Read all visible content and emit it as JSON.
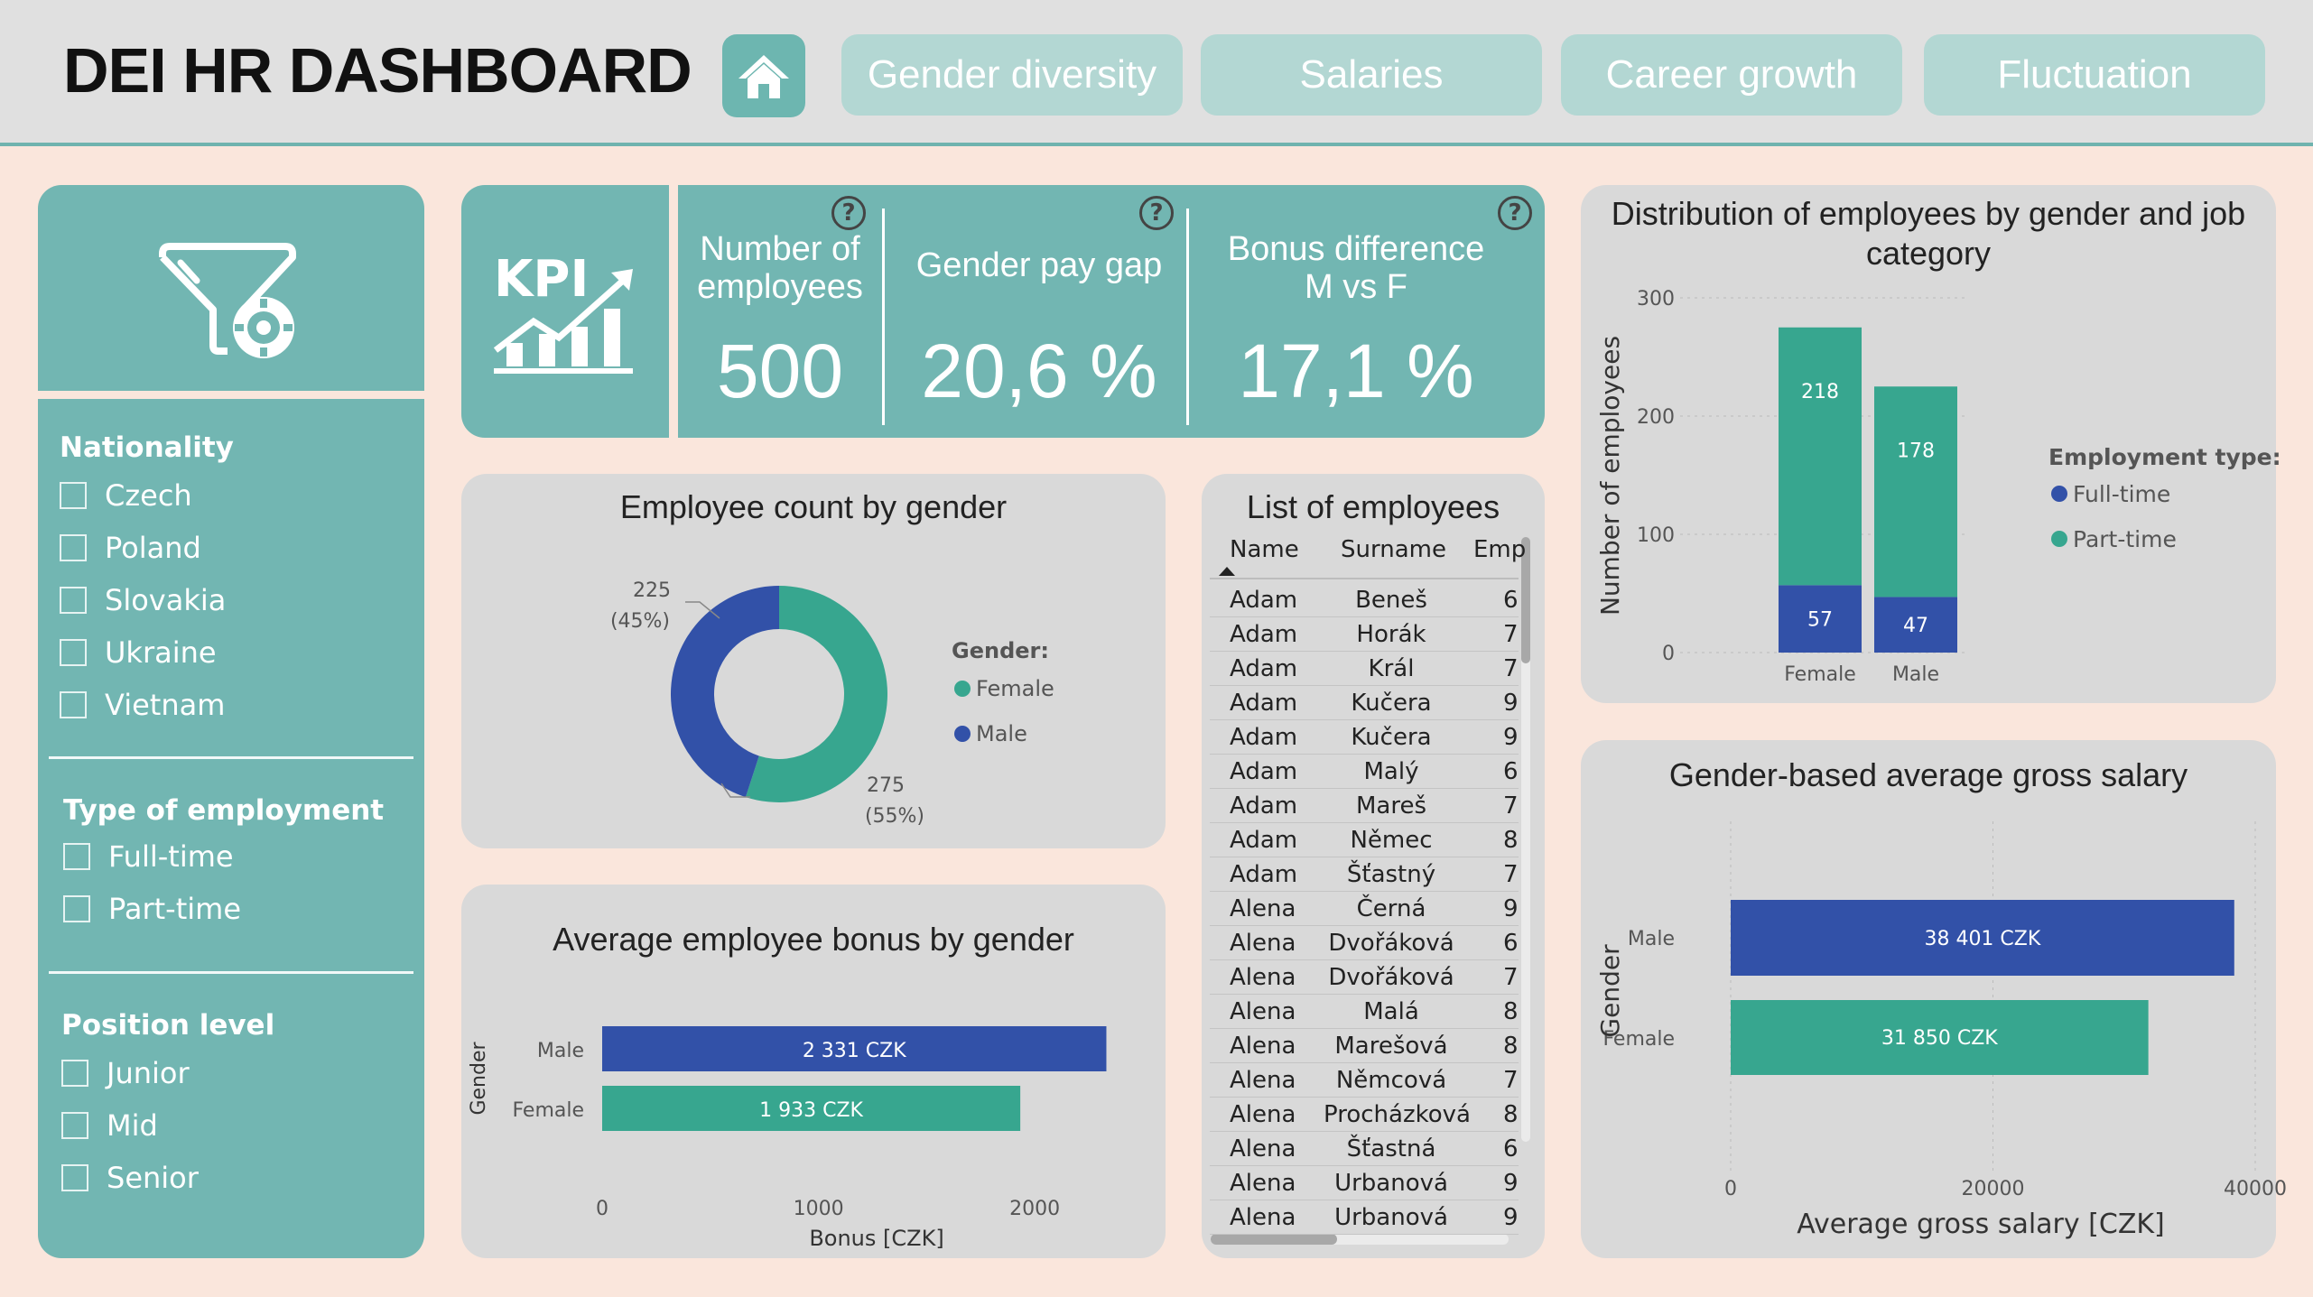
{
  "header": {
    "title": "DEI HR DASHBOARD",
    "nav": [
      "Gender diversity",
      "Salaries",
      "Career growth",
      "Fluctuation"
    ]
  },
  "filters": {
    "nationality": {
      "title": "Nationality",
      "items": [
        "Czech",
        "Poland",
        "Slovakia",
        "Ukraine",
        "Vietnam"
      ]
    },
    "employment": {
      "title": "Type of employment",
      "items": [
        "Full-time",
        "Part-time"
      ]
    },
    "position": {
      "title": "Position level",
      "items": [
        "Junior",
        "Mid",
        "Senior"
      ]
    }
  },
  "kpi": {
    "icon_text": "KPI",
    "cards": [
      {
        "label_line1": "Number of",
        "label_line2": "employees",
        "value": "500"
      },
      {
        "label_line1": "Gender pay gap",
        "label_line2": "",
        "value": "20,6 %"
      },
      {
        "label_line1": "Bonus difference",
        "label_line2": "M vs F",
        "value": "17,1 %"
      }
    ],
    "help_glyph": "?"
  },
  "employee_count": {
    "title": "Employee count by gender",
    "legend_title": "Gender:",
    "legend": [
      "Female",
      "Male"
    ],
    "male_label": "225",
    "male_pct": "(45%)",
    "female_label": "275",
    "female_pct": "(55%)"
  },
  "employee_list": {
    "title": "List of employees",
    "columns": [
      "Name",
      "Surname",
      "Emp"
    ],
    "rows": [
      [
        "Adam",
        "Beneš",
        "6"
      ],
      [
        "Adam",
        "Horák",
        "7"
      ],
      [
        "Adam",
        "Král",
        "7"
      ],
      [
        "Adam",
        "Kučera",
        "9"
      ],
      [
        "Adam",
        "Kučera",
        "9"
      ],
      [
        "Adam",
        "Malý",
        "6"
      ],
      [
        "Adam",
        "Mareš",
        "7"
      ],
      [
        "Adam",
        "Němec",
        "8"
      ],
      [
        "Adam",
        "Šťastný",
        "7"
      ],
      [
        "Alena",
        "Černá",
        "9"
      ],
      [
        "Alena",
        "Dvořáková",
        "6"
      ],
      [
        "Alena",
        "Dvořáková",
        "7"
      ],
      [
        "Alena",
        "Malá",
        "8"
      ],
      [
        "Alena",
        "Marešová",
        "8"
      ],
      [
        "Alena",
        "Němcová",
        "7"
      ],
      [
        "Alena",
        "Procházková",
        "8"
      ],
      [
        "Alena",
        "Šťastná",
        "6"
      ],
      [
        "Alena",
        "Urbanová",
        "9"
      ],
      [
        "Alena",
        "Urbanová",
        "9"
      ]
    ]
  },
  "colors": {
    "male": "#3251a8",
    "female": "#37a68f",
    "teal_panel": "#72b6b2",
    "nav_button": "#b3d7d3",
    "panel_bg": "#d9d9d9",
    "page_bg": "#fae6dc"
  },
  "chart_data": [
    {
      "type": "pie",
      "title": "Employee count by gender",
      "categories": [
        "Female",
        "Male"
      ],
      "values": [
        275,
        225
      ],
      "legend_title": "Gender:",
      "donut": true
    },
    {
      "type": "bar",
      "orientation": "horizontal",
      "title": "Average employee bonus by gender",
      "categories": [
        "Male",
        "Female"
      ],
      "values": [
        2331,
        1933
      ],
      "data_labels": [
        "2 331 CZK",
        "1 933 CZK"
      ],
      "xlabel": "Bonus [CZK]",
      "ylabel": "Gender",
      "xticks": [
        "0",
        "1000",
        "2000"
      ],
      "xlim": [
        0,
        2400
      ]
    },
    {
      "type": "bar",
      "stacked": true,
      "title": "Distribution of employees by gender and job category",
      "categories": [
        "Female",
        "Male"
      ],
      "series": [
        {
          "name": "Full-time",
          "values": [
            57,
            47
          ]
        },
        {
          "name": "Part-time",
          "values": [
            218,
            178
          ]
        }
      ],
      "ylabel": "Number of employees",
      "yticks": [
        "0",
        "100",
        "200",
        "300"
      ],
      "ylim": [
        0,
        300
      ],
      "legend_title": "Employment type:",
      "legend_position": "right"
    },
    {
      "type": "bar",
      "orientation": "horizontal",
      "title": "Gender-based average gross salary",
      "categories": [
        "Male",
        "Female"
      ],
      "values": [
        38401,
        31850
      ],
      "data_labels": [
        "38 401 CZK",
        "31 850 CZK"
      ],
      "xlabel": "Average gross salary [CZK]",
      "ylabel": "Gender",
      "xticks": [
        "0",
        "20000",
        "40000"
      ],
      "xlim": [
        0,
        40000
      ]
    }
  ]
}
